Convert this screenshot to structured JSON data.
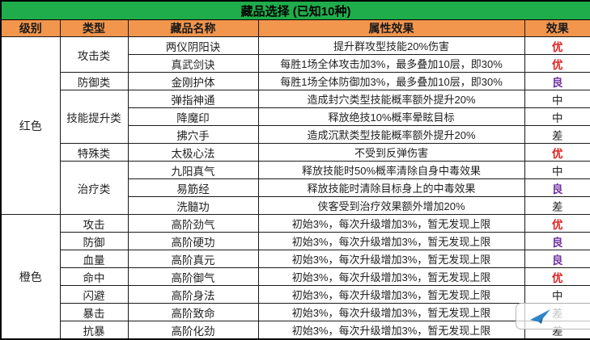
{
  "chart_data": {
    "type": "table",
    "title": "藏品选择 (已知10种)",
    "columns": [
      "级别",
      "类型",
      "藏品名称",
      "属性效果",
      "效果"
    ],
    "rows": [
      [
        "红色",
        "攻击类",
        "两仪阴阳诀",
        "提升群攻型技能20%伤害",
        "优"
      ],
      [
        "红色",
        "攻击类",
        "真武剑诀",
        "每胜1场全体攻击加3%，最多叠加10层，即30%",
        "优"
      ],
      [
        "红色",
        "防御类",
        "金刚护体",
        "每胜1场全体防御加3%，最多叠加10层，即30%",
        "良"
      ],
      [
        "红色",
        "技能提升类",
        "弹指神通",
        "造成封穴类型技能概率额外提升20%",
        "中"
      ],
      [
        "红色",
        "技能提升类",
        "降魔印",
        "释放绝技10%概率晕眩目标",
        "中"
      ],
      [
        "红色",
        "技能提升类",
        "拂穴手",
        "造成沉默类型技能概率额外提升20%",
        "差"
      ],
      [
        "红色",
        "特殊类",
        "太极心法",
        "不受到反弹伤害",
        "优"
      ],
      [
        "红色",
        "治疗类",
        "九阳真气",
        "释放技能时50%概率清除自身中毒效果",
        "中"
      ],
      [
        "红色",
        "治疗类",
        "易筋经",
        "释放技能时清除目标身上的中毒效果",
        "良"
      ],
      [
        "红色",
        "治疗类",
        "洗髓功",
        "侠客受到治疗效果额外增加20%",
        "差"
      ],
      [
        "橙色",
        "攻击",
        "高阶劲气",
        "初始3%，每次升级增加3%，暂无发现上限",
        "优"
      ],
      [
        "橙色",
        "防御",
        "高阶硬功",
        "初始3%，每次升级增加3%，暂无发现上限",
        "良"
      ],
      [
        "橙色",
        "血量",
        "高阶真元",
        "初始3%，每次升级增加3%，暂无发现上限",
        "良"
      ],
      [
        "橙色",
        "命中",
        "高阶御气",
        "初始3%，每次升级增加3%，暂无发现上限",
        "优"
      ],
      [
        "橙色",
        "闪避",
        "高阶身法",
        "初始3%，每次升级增加3%，暂无发现上限",
        "中"
      ],
      [
        "橙色",
        "暴击",
        "高阶致命",
        "初始3%，每次升级增加3%，暂无发现上限",
        "差"
      ],
      [
        "橙色",
        "抗暴",
        "高阶化劲",
        "初始3%，每次升级增加3%，暂无发现上限",
        "差"
      ]
    ],
    "rating_colors": {
      "优": "#e02020",
      "良": "#7030a0",
      "中": "#1f1f1f",
      "差": "#1f1f1f"
    },
    "bold_ratings": [
      "优",
      "良"
    ],
    "layout": {
      "title_bg": "#1fad4b",
      "header_bg": "#f2954d",
      "grid": "on"
    }
  },
  "watermark": {
    "icon": "paper-plane",
    "icon_color": "#2e86c8"
  }
}
